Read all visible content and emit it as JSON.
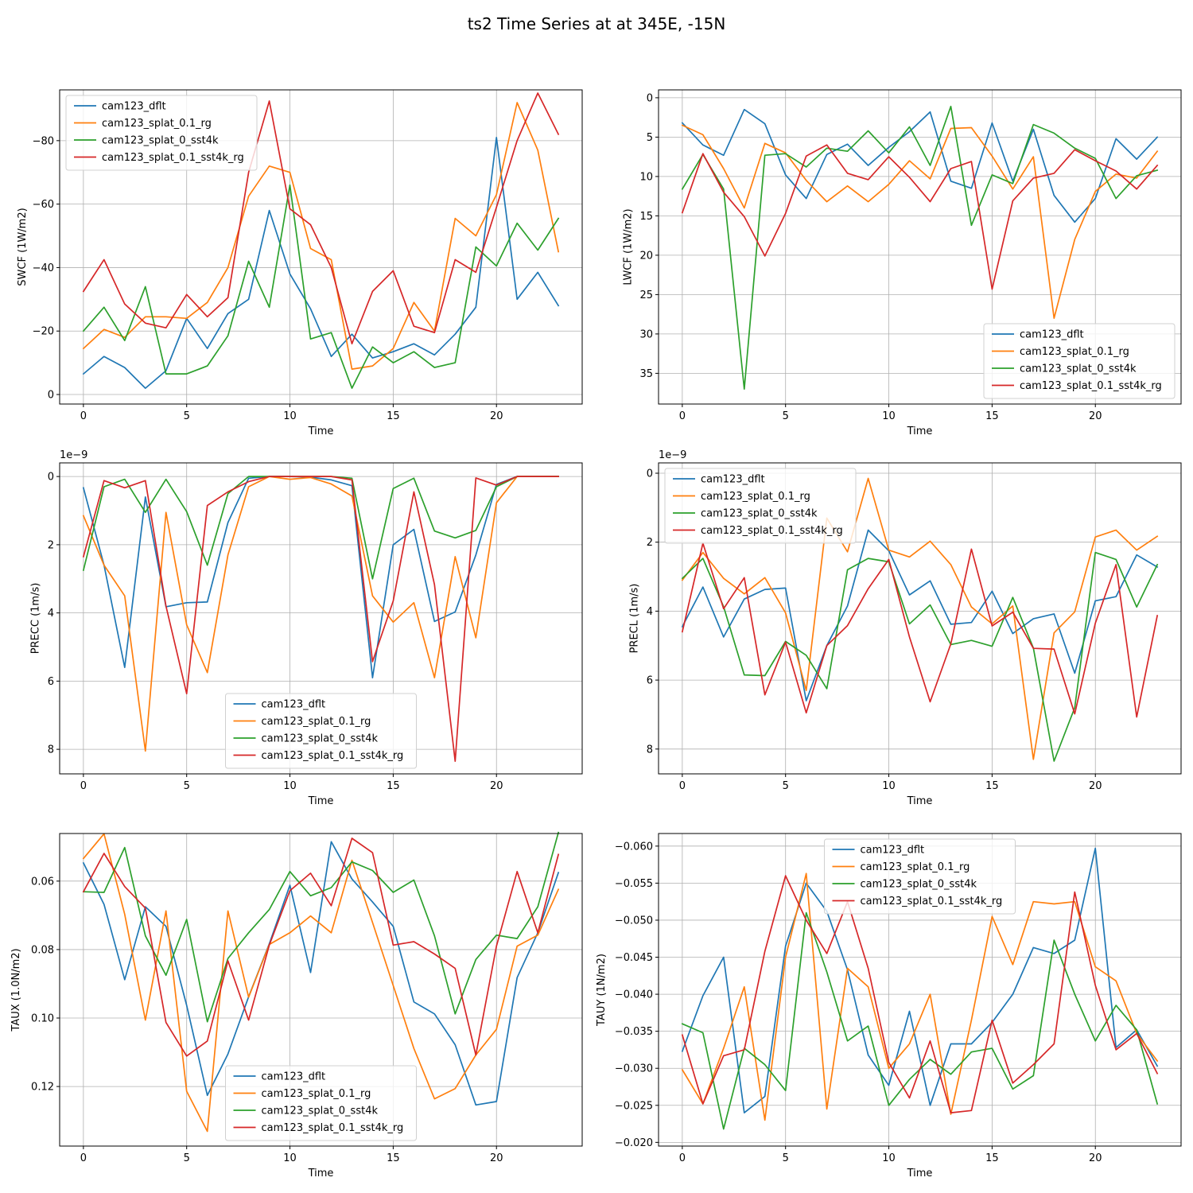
{
  "figure": {
    "title": "ts2 Time Series at at 345E, -15N"
  },
  "colors": {
    "cam123_dflt": "#1f77b4",
    "cam123_splat_0.1_rg": "#ff7f0e",
    "cam123_splat_0_sst4k": "#2ca02c",
    "cam123_splat_0.1_sst4k_rg": "#d62728"
  },
  "chart_data": [
    {
      "type": "line",
      "id": "swcf",
      "title": "",
      "xlabel": "Time",
      "ylabel": "SWCF (1W/m2)",
      "xlim": [
        -1.15,
        24.15
      ],
      "ylim": [
        3,
        -96
      ],
      "xticks": [
        0,
        5,
        10,
        15,
        20
      ],
      "yticks": [
        0,
        -20,
        -40,
        -60,
        -80
      ],
      "ytick_labels": [
        "0",
        "−20",
        "−40",
        "−60",
        "−80"
      ],
      "legend_loc": "upper-left",
      "x": [
        0,
        1,
        2,
        3,
        4,
        5,
        6,
        7,
        8,
        9,
        10,
        11,
        12,
        13,
        14,
        15,
        16,
        17,
        18,
        19,
        20,
        21,
        22,
        23
      ],
      "series": [
        {
          "name": "cam123_dflt",
          "values": [
            -6.5,
            -12,
            -8.5,
            -2,
            -7.5,
            -24,
            -14.5,
            -25.5,
            -30,
            -58,
            -38,
            -27,
            -12,
            -19,
            -11.5,
            -13.5,
            -16,
            -12.5,
            -19,
            -27.5,
            -81,
            -30,
            -38.5,
            -28
          ]
        },
        {
          "name": "cam123_splat_0.1_rg",
          "values": [
            -14.5,
            -20.5,
            -18,
            -24.5,
            -24.5,
            -24,
            -29,
            -40,
            -62.5,
            -72,
            -70,
            -46,
            -42.5,
            -8,
            -9,
            -14.5,
            -29,
            -20,
            -55.5,
            -50,
            -63,
            -92,
            -77,
            -45
          ]
        },
        {
          "name": "cam123_splat_0_sst4k",
          "values": [
            -20,
            -27.5,
            -17,
            -34,
            -6.5,
            -6.5,
            -9,
            -18.5,
            -42,
            -27.5,
            -66,
            -17.5,
            -19.5,
            -2,
            -15,
            -10,
            -13.5,
            -8.5,
            -10,
            -46.5,
            -40.5,
            -54,
            -45.5,
            -55.5
          ]
        },
        {
          "name": "cam123_splat_0.1_sst4k_rg",
          "values": [
            -32.5,
            -42.5,
            -28.5,
            -22.5,
            -21,
            -31.5,
            -24.5,
            -30.5,
            -70,
            -92.5,
            -58.5,
            -53.5,
            -40,
            -16,
            -32.5,
            -39,
            -21.5,
            -19.5,
            -42.5,
            -38.5,
            -59,
            -80,
            -95,
            -82
          ]
        }
      ]
    },
    {
      "type": "line",
      "id": "lwcf",
      "title": "",
      "xlabel": "Time",
      "ylabel": "LWCF (1W/m2)",
      "xlim": [
        -1.15,
        24.15
      ],
      "ylim": [
        38.9,
        -1
      ],
      "xticks": [
        0,
        5,
        10,
        15,
        20
      ],
      "yticks": [
        0,
        5,
        10,
        15,
        20,
        25,
        30,
        35
      ],
      "ytick_labels": [
        "0",
        "5",
        "10",
        "15",
        "20",
        "25",
        "30",
        "35"
      ],
      "legend_loc": "lower-right",
      "x": [
        0,
        1,
        2,
        3,
        4,
        5,
        6,
        7,
        8,
        9,
        10,
        11,
        12,
        13,
        14,
        15,
        16,
        17,
        18,
        19,
        20,
        21,
        22,
        23
      ],
      "series": [
        {
          "name": "cam123_dflt",
          "values": [
            3.2,
            6,
            7.3,
            1.5,
            3.3,
            9.8,
            12.8,
            7.2,
            5.9,
            8.6,
            6.3,
            4.3,
            1.8,
            10.6,
            11.5,
            3.2,
            10.6,
            4,
            12.4,
            15.8,
            12.8,
            5.2,
            7.8,
            5
          ]
        },
        {
          "name": "cam123_splat_0.1_rg",
          "values": [
            3.5,
            4.7,
            9,
            14,
            5.8,
            7,
            10.5,
            13.2,
            11.2,
            13.2,
            11,
            8,
            10.3,
            3.9,
            3.8,
            7.4,
            11.6,
            7.5,
            28,
            18,
            11.9,
            9.7,
            10.2,
            6.8
          ]
        },
        {
          "name": "cam123_splat_0_sst4k",
          "values": [
            11.6,
            7.2,
            11.6,
            37,
            7.3,
            7.1,
            8.8,
            6.4,
            6.8,
            4.2,
            7,
            3.7,
            8.6,
            1.1,
            16.2,
            9.8,
            10.9,
            3.4,
            4.5,
            6.4,
            7.7,
            12.8,
            9.9,
            9.2
          ]
        },
        {
          "name": "cam123_splat_0.1_sst4k_rg",
          "values": [
            14.6,
            7.1,
            12,
            15.1,
            20.1,
            14.7,
            7.4,
            6,
            9.6,
            10.4,
            7.5,
            10.1,
            13.2,
            9,
            8.1,
            24.3,
            13.1,
            10.2,
            9.6,
            6.6,
            8,
            9.3,
            11.6,
            8.6
          ]
        }
      ]
    },
    {
      "type": "line",
      "id": "precc",
      "title": "",
      "xlabel": "Time",
      "ylabel": "PRECC (1m/s)",
      "offset_text": "1e−9",
      "xlim": [
        -1.15,
        24.15
      ],
      "ylim": [
        8.72,
        -0.4
      ],
      "xticks": [
        0,
        5,
        10,
        15,
        20
      ],
      "yticks": [
        0,
        2,
        4,
        6,
        8
      ],
      "ytick_labels": [
        "0",
        "2",
        "4",
        "6",
        "8"
      ],
      "legend_loc": "lower-center",
      "x": [
        0,
        1,
        2,
        3,
        4,
        5,
        6,
        7,
        8,
        9,
        10,
        11,
        12,
        13,
        14,
        15,
        16,
        17,
        18,
        19,
        20,
        21,
        22,
        23
      ],
      "series": [
        {
          "name": "cam123_dflt",
          "values": [
            0.33,
            2.6,
            5.6,
            0.6,
            3.82,
            3.7,
            3.68,
            1.35,
            0.05,
            0,
            0,
            0.02,
            0.1,
            0.27,
            5.9,
            2,
            1.55,
            4.25,
            3.97,
            2.3,
            0.23,
            0,
            0,
            0
          ]
        },
        {
          "name": "cam123_splat_0.1_rg",
          "values": [
            1.15,
            2.6,
            3.5,
            8.05,
            1.05,
            4.35,
            5.75,
            2.3,
            0.3,
            0,
            0.08,
            0.03,
            0.22,
            0.57,
            3.5,
            4.27,
            3.7,
            5.9,
            2.35,
            4.73,
            0.77,
            0,
            0,
            0
          ]
        },
        {
          "name": "cam123_splat_0_sst4k",
          "values": [
            2.75,
            0.3,
            0.08,
            1.05,
            0.08,
            1.03,
            2.6,
            0.5,
            0,
            0,
            0,
            0,
            0,
            0.05,
            3,
            0.35,
            0.05,
            1.6,
            1.8,
            1.58,
            0.3,
            0,
            0,
            0
          ]
        },
        {
          "name": "cam123_splat_0.1_sst4k_rg",
          "values": [
            2.35,
            0.12,
            0.33,
            0.12,
            3.8,
            6.37,
            0.85,
            0.45,
            0.15,
            0,
            0,
            0,
            0,
            0.1,
            5.43,
            3.65,
            0.45,
            3.17,
            8.35,
            0.04,
            0.25,
            0,
            0,
            0
          ]
        }
      ]
    },
    {
      "type": "line",
      "id": "precl",
      "title": "",
      "xlabel": "Time",
      "ylabel": "PRECL (1m/s)",
      "offset_text": "1e−9",
      "xlim": [
        -1.15,
        24.15
      ],
      "ylim": [
        8.72,
        -0.3
      ],
      "xticks": [
        0,
        5,
        10,
        15,
        20
      ],
      "yticks": [
        0,
        2,
        4,
        6,
        8
      ],
      "ytick_labels": [
        "0",
        "2",
        "4",
        "6",
        "8"
      ],
      "legend_loc": "upper-left",
      "x": [
        0,
        1,
        2,
        3,
        4,
        5,
        6,
        7,
        8,
        9,
        10,
        11,
        12,
        13,
        14,
        15,
        16,
        17,
        18,
        19,
        20,
        21,
        22,
        23
      ],
      "series": [
        {
          "name": "cam123_dflt",
          "values": [
            4.45,
            3.3,
            4.75,
            3.65,
            3.37,
            3.33,
            6.6,
            5,
            3.85,
            1.65,
            2.25,
            3.53,
            3.12,
            4.38,
            4.33,
            3.42,
            4.65,
            4.22,
            4.08,
            5.8,
            3.7,
            3.58,
            2.37,
            2.72
          ]
        },
        {
          "name": "cam123_splat_0.1_rg",
          "values": [
            3.1,
            2.3,
            3.05,
            3.5,
            3.03,
            4.05,
            6.3,
            1.3,
            2.28,
            0.15,
            2.23,
            2.43,
            1.97,
            2.65,
            3.88,
            4.37,
            3.85,
            8.3,
            4.63,
            4.02,
            1.85,
            1.65,
            2.23,
            1.83
          ]
        },
        {
          "name": "cam123_splat_0_sst4k",
          "values": [
            3.05,
            2.47,
            3.87,
            5.85,
            5.87,
            4.88,
            5.28,
            6.25,
            2.8,
            2.47,
            2.57,
            4.37,
            3.82,
            4.97,
            4.85,
            5.02,
            3.6,
            5.07,
            8.35,
            6.8,
            2.3,
            2.5,
            3.88,
            2.65
          ]
        },
        {
          "name": "cam123_splat_0.1_sst4k_rg",
          "values": [
            4.6,
            2.03,
            3.93,
            3.03,
            6.43,
            4.9,
            6.95,
            5,
            4.42,
            3.35,
            2.5,
            4.75,
            6.63,
            4.95,
            2.2,
            4.43,
            4.03,
            5.08,
            5.1,
            6.98,
            4.35,
            2.65,
            7.07,
            4.13
          ]
        }
      ]
    },
    {
      "type": "line",
      "id": "taux",
      "title": "",
      "xlabel": "Time",
      "ylabel": "TAUX (1.0N/m2)",
      "xlim": [
        -1.15,
        24.15
      ],
      "ylim": [
        0.1374,
        0.0461
      ],
      "xticks": [
        0,
        5,
        10,
        15,
        20
      ],
      "yticks": [
        0.06,
        0.08,
        0.1,
        0.12
      ],
      "ytick_labels": [
        "0.06",
        "0.08",
        "0.10",
        "0.12"
      ],
      "legend_loc": "lower-center",
      "x": [
        0,
        1,
        2,
        3,
        4,
        5,
        6,
        7,
        8,
        9,
        10,
        11,
        12,
        13,
        14,
        15,
        16,
        17,
        18,
        19,
        20,
        21,
        22,
        23
      ],
      "series": [
        {
          "name": "cam123_dflt",
          "values": [
            0.0547,
            0.0668,
            0.0888,
            0.0675,
            0.0732,
            0.0963,
            0.1226,
            0.1105,
            0.0938,
            0.0783,
            0.0612,
            0.0867,
            0.0485,
            0.0594,
            0.0661,
            0.0732,
            0.0953,
            0.0988,
            0.1078,
            0.1254,
            0.1244,
            0.0882,
            0.0751,
            0.0575
          ]
        },
        {
          "name": "cam123_splat_0.1_rg",
          "values": [
            0.0534,
            0.0462,
            0.0697,
            0.1006,
            0.0687,
            0.1214,
            0.1331,
            0.0687,
            0.0939,
            0.0785,
            0.0751,
            0.0702,
            0.0751,
            0.0539,
            0.0721,
            0.0905,
            0.1089,
            0.1236,
            0.1206,
            0.1108,
            0.1033,
            0.079,
            0.0758,
            0.0624
          ]
        },
        {
          "name": "cam123_splat_0_sst4k",
          "values": [
            0.0631,
            0.0633,
            0.0502,
            0.076,
            0.0875,
            0.0712,
            0.1011,
            0.0826,
            0.0751,
            0.0683,
            0.0572,
            0.0643,
            0.0619,
            0.0544,
            0.0569,
            0.0633,
            0.0597,
            0.076,
            0.0988,
            0.0829,
            0.0758,
            0.0768,
            0.0675,
            0.0458
          ]
        },
        {
          "name": "cam123_splat_0.1_sst4k_rg",
          "values": [
            0.0631,
            0.0519,
            0.0616,
            0.0679,
            0.1013,
            0.1111,
            0.1067,
            0.0833,
            0.1006,
            0.0787,
            0.0628,
            0.0577,
            0.0672,
            0.0475,
            0.0517,
            0.0787,
            0.0777,
            0.0813,
            0.0855,
            0.1108,
            0.079,
            0.0572,
            0.0751,
            0.0522
          ]
        }
      ]
    },
    {
      "type": "line",
      "id": "tauy",
      "title": "",
      "xlabel": "Time",
      "ylabel": "TAUY (1N/m2)",
      "xlim": [
        -1.15,
        24.15
      ],
      "ylim": [
        -0.0195,
        -0.0617
      ],
      "xticks": [
        0,
        5,
        10,
        15,
        20
      ],
      "yticks": [
        -0.06,
        -0.055,
        -0.05,
        -0.045,
        -0.04,
        -0.035,
        -0.03,
        -0.025,
        -0.02
      ],
      "ytick_labels": [
        "−0.060",
        "−0.055",
        "−0.050",
        "−0.045",
        "−0.040",
        "−0.035",
        "−0.030",
        "−0.025",
        "−0.020"
      ],
      "legend_loc": "upper-center",
      "x": [
        0,
        1,
        2,
        3,
        4,
        5,
        6,
        7,
        8,
        9,
        10,
        11,
        12,
        13,
        14,
        15,
        16,
        17,
        18,
        19,
        20,
        21,
        22,
        23
      ],
      "series": [
        {
          "name": "cam123_dflt",
          "values": [
            -0.0323,
            -0.0398,
            -0.045,
            -0.024,
            -0.0262,
            -0.0465,
            -0.055,
            -0.0512,
            -0.0433,
            -0.0318,
            -0.0277,
            -0.0377,
            -0.025,
            -0.0333,
            -0.0333,
            -0.0362,
            -0.04,
            -0.0463,
            -0.0455,
            -0.0473,
            -0.0597,
            -0.0328,
            -0.0352,
            -0.0303
          ]
        },
        {
          "name": "cam123_splat_0.1_rg",
          "values": [
            -0.0298,
            -0.0252,
            -0.0327,
            -0.041,
            -0.023,
            -0.045,
            -0.0563,
            -0.0245,
            -0.0435,
            -0.041,
            -0.03,
            -0.0333,
            -0.04,
            -0.0238,
            -0.0365,
            -0.0505,
            -0.044,
            -0.0525,
            -0.0522,
            -0.0525,
            -0.0437,
            -0.0418,
            -0.0347,
            -0.031
          ]
        },
        {
          "name": "cam123_splat_0_sst4k",
          "values": [
            -0.036,
            -0.0348,
            -0.0218,
            -0.0327,
            -0.0305,
            -0.027,
            -0.051,
            -0.043,
            -0.0337,
            -0.0357,
            -0.025,
            -0.0285,
            -0.0312,
            -0.0292,
            -0.0322,
            -0.0327,
            -0.0272,
            -0.029,
            -0.0473,
            -0.04,
            -0.0337,
            -0.0385,
            -0.0352,
            -0.0252
          ]
        },
        {
          "name": "cam123_splat_0.1_sst4k_rg",
          "values": [
            -0.0345,
            -0.0252,
            -0.0317,
            -0.0325,
            -0.0458,
            -0.056,
            -0.05,
            -0.0455,
            -0.0525,
            -0.0435,
            -0.0308,
            -0.026,
            -0.0337,
            -0.024,
            -0.0243,
            -0.0365,
            -0.028,
            -0.0305,
            -0.0333,
            -0.0538,
            -0.0412,
            -0.0325,
            -0.0347,
            -0.0293
          ]
        }
      ]
    }
  ]
}
